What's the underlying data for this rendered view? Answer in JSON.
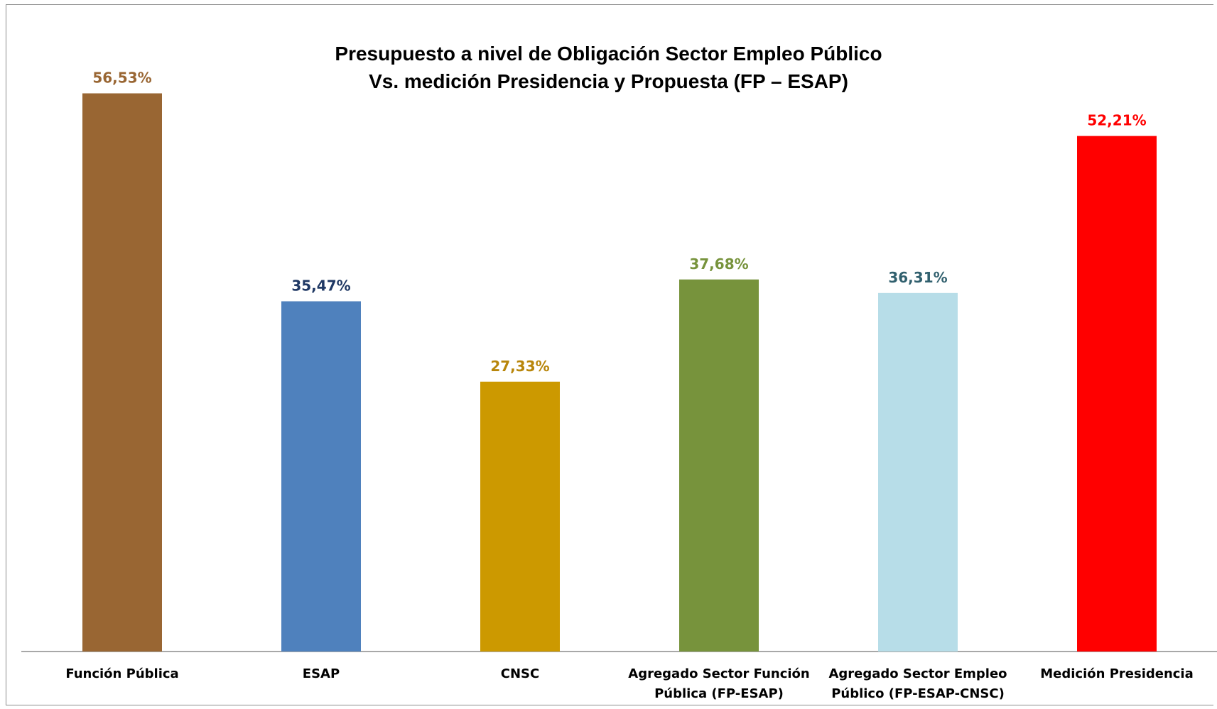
{
  "chart_data": {
    "type": "bar",
    "title": "Presupuesto a nivel de Obligación Sector Empleo Público",
    "subtitle": "Vs. medición Presidencia y Propuesta (FP – ESAP)",
    "categories": [
      [
        "Función Pública"
      ],
      [
        "ESAP"
      ],
      [
        "CNSC"
      ],
      [
        "Agregado Sector Función",
        "Pública (FP-ESAP)"
      ],
      [
        "Agregado Sector Empleo",
        "Público (FP-ESAP-CNSC)"
      ],
      [
        "Medición Presidencia"
      ]
    ],
    "values": [
      56.53,
      35.47,
      27.33,
      37.68,
      36.31,
      52.21
    ],
    "value_labels": [
      "56,53%",
      "35,47%",
      "27,33%",
      "37,68%",
      "36,31%",
      "52,21%"
    ],
    "bar_colors": [
      "#996633",
      "#4F81BD",
      "#CC9900",
      "#77933C",
      "#B7DDE8",
      "#FF0000"
    ],
    "label_colors": [
      "#996633",
      "#1F3864",
      "#B8860B",
      "#77933C",
      "#31606E",
      "#FF0000"
    ],
    "ylim": [
      0,
      61.67
    ],
    "grid": false,
    "legend": "none",
    "xlabel": "",
    "ylabel": ""
  }
}
